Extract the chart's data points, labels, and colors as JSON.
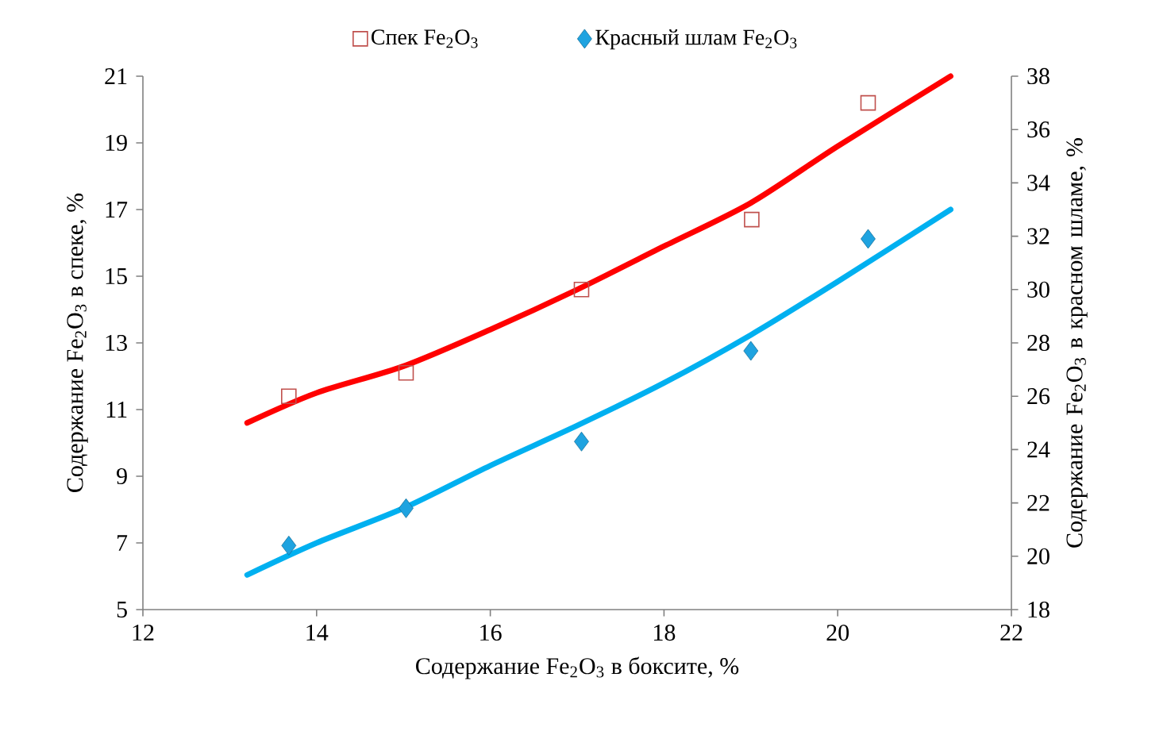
{
  "chart_data": {
    "type": "scatter",
    "xlabel": "Содержание  Fe$_{2}$O$_{3}$ в боксите, %",
    "ylabel": "Содержание  Fe$_{2}$O$_{3}$ в спеке, %",
    "y2label": "Содержание Fe$_{2}$O$_{3}$ в красном  шламе, %",
    "xlim": [
      12,
      22
    ],
    "xticks": [
      12,
      14,
      16,
      18,
      20,
      22
    ],
    "ylim": [
      5,
      21
    ],
    "yticks": [
      5,
      7,
      9,
      11,
      13,
      15,
      17,
      19,
      21
    ],
    "y2lim": [
      18,
      38
    ],
    "y2ticks": [
      18,
      20,
      22,
      24,
      26,
      28,
      30,
      32,
      34,
      36,
      38
    ],
    "legend": "top",
    "series": [
      {
        "name": "Спек Fe$_{2}$O$_{3}$",
        "marker": "square",
        "color": "#c0504d",
        "x": [
          13.68,
          15.03,
          17.05,
          19.01,
          20.35
        ],
        "values": [
          11.4,
          12.1,
          14.6,
          16.7,
          20.2
        ]
      },
      {
        "name": "Красный шлам  Fe$_{2}$O$_{3}$",
        "marker": "diamond",
        "axis": "y2",
        "color": "#1fa3e0",
        "x": [
          13.68,
          15.03,
          17.05,
          19.0,
          20.35
        ],
        "values": [
          20.4,
          21.8,
          24.3,
          27.7,
          31.9
        ]
      },
      {
        "type": "line",
        "marker": "none",
        "color": "#ff0000",
        "x": [
          13.2,
          14,
          15,
          16,
          17,
          18,
          19,
          20,
          21.3
        ],
        "values": [
          10.6,
          11.5,
          12.3,
          13.4,
          14.6,
          15.9,
          17.2,
          18.9,
          21
        ]
      },
      {
        "type": "line",
        "marker": "none",
        "axis": "y2",
        "color": "#00b0f0",
        "x": [
          13.2,
          14,
          15,
          16,
          17,
          18,
          19,
          20,
          21.3
        ],
        "values": [
          19.3,
          20.5,
          21.8,
          23.4,
          24.9,
          26.5,
          28.3,
          30.3,
          33
        ]
      }
    ]
  }
}
